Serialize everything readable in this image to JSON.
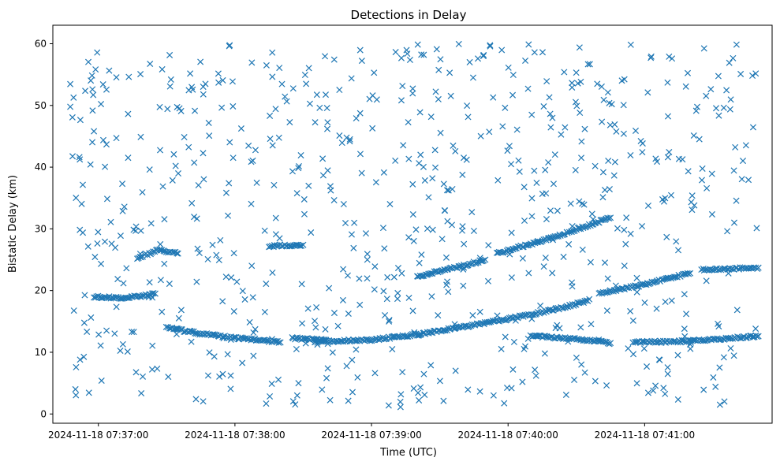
{
  "chart_data": {
    "type": "scatter",
    "title": "Detections in Delay",
    "xlabel": "Time (UTC)",
    "ylabel": "Bistatic Delay (km)",
    "marker": "x",
    "color": "#1f77b4",
    "grid": false,
    "legend": "none",
    "x_start": "2024-11-18 07:36:46",
    "x_end": "2024-11-18 07:41:50",
    "xlim": [
      "2024-11-18 07:36:40",
      "2024-11-18 07:41:56"
    ],
    "ylim": [
      -1.5,
      63
    ],
    "xticks": [
      {
        "t": "2024-11-18 07:37:00",
        "label": "2024-11-18 07:37:00"
      },
      {
        "t": "2024-11-18 07:38:00",
        "label": "2024-11-18 07:38:00"
      },
      {
        "t": "2024-11-18 07:39:00",
        "label": "2024-11-18 07:39:00"
      },
      {
        "t": "2024-11-18 07:40:00",
        "label": "2024-11-18 07:40:00"
      },
      {
        "t": "2024-11-18 07:41:00",
        "label": "2024-11-18 07:41:00"
      }
    ],
    "yticks": [
      0,
      10,
      20,
      30,
      40,
      50,
      60
    ],
    "tracks": [
      {
        "time": [
          "2024-11-18 07:36:58",
          "2024-11-18 07:37:10",
          "2024-11-18 07:37:20",
          "2024-11-18 07:37:25"
        ],
        "delay": [
          19.0,
          18.8,
          19.2,
          19.5
        ]
      },
      {
        "time": [
          "2024-11-18 07:37:17",
          "2024-11-18 07:37:26",
          "2024-11-18 07:37:35"
        ],
        "delay": [
          25.3,
          26.5,
          26.0
        ]
      },
      {
        "time": [
          "2024-11-18 07:37:30",
          "2024-11-18 07:37:45",
          "2024-11-18 07:38:00",
          "2024-11-18 07:38:12",
          "2024-11-18 07:38:20"
        ],
        "delay": [
          14.0,
          13.0,
          12.3,
          12.0,
          11.6
        ]
      },
      {
        "time": [
          "2024-11-18 07:38:15",
          "2024-11-18 07:38:30"
        ],
        "delay": [
          27.2,
          27.4
        ]
      },
      {
        "time": [
          "2024-11-18 07:38:25",
          "2024-11-18 07:38:40"
        ],
        "delay": [
          12.3,
          12.0
        ]
      },
      {
        "time": [
          "2024-11-18 07:38:35",
          "2024-11-18 07:39:00",
          "2024-11-18 07:39:20",
          "2024-11-18 07:39:40",
          "2024-11-18 07:40:00",
          "2024-11-18 07:40:20",
          "2024-11-18 07:40:35"
        ],
        "delay": [
          11.7,
          12.0,
          12.9,
          14.1,
          15.4,
          16.9,
          18.3
        ]
      },
      {
        "time": [
          "2024-11-18 07:39:20",
          "2024-11-18 07:39:40",
          "2024-11-18 07:39:50"
        ],
        "delay": [
          22.3,
          24.0,
          25.0
        ]
      },
      {
        "time": [
          "2024-11-18 07:39:55",
          "2024-11-18 07:40:20",
          "2024-11-18 07:40:45"
        ],
        "delay": [
          26.0,
          28.6,
          31.8
        ]
      },
      {
        "time": [
          "2024-11-18 07:40:10",
          "2024-11-18 07:40:30",
          "2024-11-18 07:40:45"
        ],
        "delay": [
          12.7,
          12.1,
          11.5
        ]
      },
      {
        "time": [
          "2024-11-18 07:40:40",
          "2024-11-18 07:41:00",
          "2024-11-18 07:41:20"
        ],
        "delay": [
          19.5,
          21.0,
          22.8
        ]
      },
      {
        "time": [
          "2024-11-18 07:41:25",
          "2024-11-18 07:41:50"
        ],
        "delay": [
          23.4,
          23.7
        ]
      },
      {
        "time": [
          "2024-11-18 07:40:55",
          "2024-11-18 07:41:20",
          "2024-11-18 07:41:50"
        ],
        "delay": [
          11.6,
          11.8,
          12.6
        ]
      }
    ],
    "scattered_detections": {
      "count": 720,
      "delay_range": [
        1.0,
        60.0
      ]
    }
  }
}
